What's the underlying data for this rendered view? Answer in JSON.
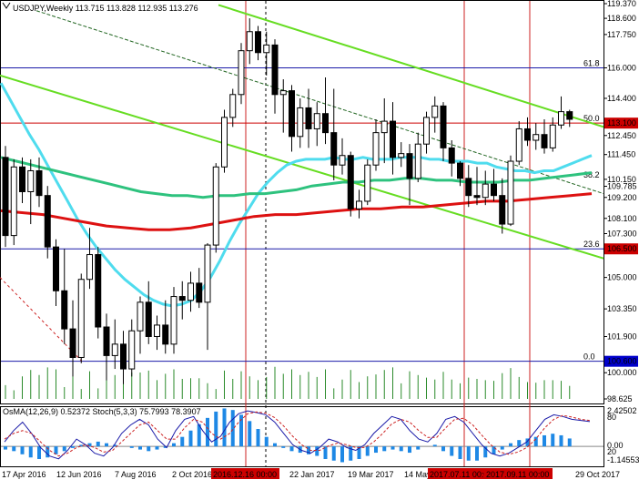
{
  "chart_data": {
    "type": "candlestick",
    "symbol_header": "USDJPY,Weekly  113.715 113.828 112.935 113.276",
    "price_axis": {
      "min": 98.625,
      "max": 119.37,
      "labels": [
        "119.370",
        "118.600",
        "117.750",
        "116.000",
        "114.400",
        "113.100",
        "112.450",
        "111.450",
        "110.150",
        "109.785",
        "109.200",
        "108.100",
        "107.300",
        "106.500",
        "105.000",
        "103.350",
        "101.900",
        "100.600",
        "100.000",
        "98.625"
      ],
      "highlighted": [
        {
          "label": "113.100",
          "color": "#cc0000"
        },
        {
          "label": "106.500",
          "color": "#cc0000"
        },
        {
          "label": "100.600",
          "color": "#0000cc"
        }
      ]
    },
    "x_axis_labels": [
      "17 Apr 2016",
      "12 Jun 2016",
      "7 Aug 2016",
      "2 Oct 2016",
      "2016.12.16 00:00",
      "22 Jan 2017",
      "19 Mar 2017",
      "14 May 2017",
      "2017.07.11 00:00",
      "2017.09.11 00:00",
      "29 Oct 2017"
    ],
    "fib_levels": [
      {
        "label": "61.8",
        "price": 116.0
      },
      {
        "label": "50.0",
        "price": 113.1
      },
      {
        "label": "38.2",
        "price": 110.15
      },
      {
        "label": "23.6",
        "price": 106.5
      },
      {
        "label": "0.0",
        "price": 100.6
      }
    ],
    "horizontal_lines": [
      {
        "price": 116.0,
        "color": "#1a1aa8"
      },
      {
        "price": 113.1,
        "color": "#cc0000"
      },
      {
        "price": 106.5,
        "color": "#1a1aa8"
      },
      {
        "price": 100.6,
        "color": "#1a1aa8"
      }
    ],
    "candles": [
      {
        "o": 111.3,
        "h": 111.9,
        "l": 106.6,
        "c": 107.2
      },
      {
        "o": 107.2,
        "h": 111.2,
        "l": 106.7,
        "c": 110.8
      },
      {
        "o": 110.8,
        "h": 111.3,
        "l": 108.9,
        "c": 109.5
      },
      {
        "o": 109.5,
        "h": 111.2,
        "l": 107.8,
        "c": 110.6
      },
      {
        "o": 110.6,
        "h": 111.3,
        "l": 108.7,
        "c": 109.3
      },
      {
        "o": 109.3,
        "h": 109.8,
        "l": 106.0,
        "c": 106.6
      },
      {
        "o": 106.6,
        "h": 107.0,
        "l": 103.5,
        "c": 104.3
      },
      {
        "o": 104.3,
        "h": 106.5,
        "l": 101.5,
        "c": 102.3
      },
      {
        "o": 102.3,
        "h": 103.8,
        "l": 99.8,
        "c": 100.8
      },
      {
        "o": 100.8,
        "h": 105.2,
        "l": 100.5,
        "c": 104.9
      },
      {
        "o": 104.9,
        "h": 107.6,
        "l": 104.4,
        "c": 106.2
      },
      {
        "o": 106.2,
        "h": 106.6,
        "l": 101.8,
        "c": 102.4
      },
      {
        "o": 102.4,
        "h": 103.1,
        "l": 99.6,
        "c": 100.9
      },
      {
        "o": 100.9,
        "h": 102.8,
        "l": 100.2,
        "c": 101.5
      },
      {
        "o": 101.5,
        "h": 102.2,
        "l": 99.4,
        "c": 100.2
      },
      {
        "o": 100.2,
        "h": 102.8,
        "l": 99.8,
        "c": 102.2
      },
      {
        "o": 102.2,
        "h": 104.0,
        "l": 101.0,
        "c": 103.7
      },
      {
        "o": 103.7,
        "h": 104.8,
        "l": 101.5,
        "c": 101.9
      },
      {
        "o": 101.9,
        "h": 103.0,
        "l": 101.2,
        "c": 102.5
      },
      {
        "o": 102.5,
        "h": 103.8,
        "l": 101.0,
        "c": 101.5
      },
      {
        "o": 101.5,
        "h": 104.5,
        "l": 101.0,
        "c": 104.0
      },
      {
        "o": 104.0,
        "h": 104.8,
        "l": 102.8,
        "c": 103.8
      },
      {
        "o": 103.8,
        "h": 105.3,
        "l": 103.2,
        "c": 104.7
      },
      {
        "o": 104.7,
        "h": 105.5,
        "l": 103.4,
        "c": 103.7
      },
      {
        "o": 103.7,
        "h": 106.8,
        "l": 101.2,
        "c": 106.7
      },
      {
        "o": 106.7,
        "h": 111.0,
        "l": 106.3,
        "c": 110.8
      },
      {
        "o": 110.8,
        "h": 113.8,
        "l": 110.5,
        "c": 113.4
      },
      {
        "o": 113.4,
        "h": 114.9,
        "l": 112.9,
        "c": 114.6
      },
      {
        "o": 114.6,
        "h": 117.3,
        "l": 114.1,
        "c": 116.9
      },
      {
        "o": 116.9,
        "h": 118.6,
        "l": 116.2,
        "c": 117.9
      },
      {
        "o": 117.9,
        "h": 118.2,
        "l": 116.4,
        "c": 116.8
      },
      {
        "o": 116.8,
        "h": 117.9,
        "l": 115.6,
        "c": 117.2
      },
      {
        "o": 117.2,
        "h": 117.5,
        "l": 113.6,
        "c": 114.6
      },
      {
        "o": 114.6,
        "h": 115.4,
        "l": 112.6,
        "c": 114.8
      },
      {
        "o": 114.8,
        "h": 115.1,
        "l": 111.6,
        "c": 112.4
      },
      {
        "o": 112.4,
        "h": 114.4,
        "l": 111.8,
        "c": 113.9
      },
      {
        "o": 113.9,
        "h": 114.9,
        "l": 111.8,
        "c": 112.8
      },
      {
        "o": 112.8,
        "h": 114.2,
        "l": 111.9,
        "c": 113.6
      },
      {
        "o": 113.6,
        "h": 115.5,
        "l": 112.0,
        "c": 112.6
      },
      {
        "o": 112.6,
        "h": 114.9,
        "l": 110.1,
        "c": 110.9
      },
      {
        "o": 110.9,
        "h": 112.3,
        "l": 110.4,
        "c": 111.4
      },
      {
        "o": 111.4,
        "h": 111.6,
        "l": 108.2,
        "c": 108.6
      },
      {
        "o": 108.6,
        "h": 109.6,
        "l": 108.1,
        "c": 109.0
      },
      {
        "o": 109.0,
        "h": 111.2,
        "l": 108.8,
        "c": 110.9
      },
      {
        "o": 110.9,
        "h": 113.3,
        "l": 110.6,
        "c": 112.6
      },
      {
        "o": 112.6,
        "h": 114.4,
        "l": 111.0,
        "c": 113.2
      },
      {
        "o": 113.2,
        "h": 114.2,
        "l": 110.4,
        "c": 111.3
      },
      {
        "o": 111.3,
        "h": 112.1,
        "l": 110.8,
        "c": 111.5
      },
      {
        "o": 111.5,
        "h": 112.0,
        "l": 108.8,
        "c": 110.2
      },
      {
        "o": 110.2,
        "h": 112.6,
        "l": 110.0,
        "c": 112.0
      },
      {
        "o": 112.0,
        "h": 113.7,
        "l": 111.5,
        "c": 113.4
      },
      {
        "o": 113.4,
        "h": 114.5,
        "l": 112.6,
        "c": 114.0
      },
      {
        "o": 114.0,
        "h": 114.2,
        "l": 111.1,
        "c": 111.8
      },
      {
        "o": 111.8,
        "h": 112.2,
        "l": 110.3,
        "c": 111.0
      },
      {
        "o": 111.0,
        "h": 111.1,
        "l": 109.8,
        "c": 110.2
      },
      {
        "o": 110.2,
        "h": 110.9,
        "l": 108.7,
        "c": 109.3
      },
      {
        "o": 109.3,
        "h": 110.8,
        "l": 108.8,
        "c": 109.2
      },
      {
        "o": 109.2,
        "h": 110.6,
        "l": 108.8,
        "c": 109.9
      },
      {
        "o": 109.9,
        "h": 110.7,
        "l": 109.0,
        "c": 109.3
      },
      {
        "o": 109.3,
        "h": 110.2,
        "l": 107.3,
        "c": 107.8
      },
      {
        "o": 107.8,
        "h": 111.4,
        "l": 107.7,
        "c": 111.1
      },
      {
        "o": 111.1,
        "h": 113.2,
        "l": 110.9,
        "c": 112.8
      },
      {
        "o": 112.8,
        "h": 113.4,
        "l": 111.9,
        "c": 112.2
      },
      {
        "o": 112.2,
        "h": 113.1,
        "l": 111.7,
        "c": 112.5
      },
      {
        "o": 112.5,
        "h": 113.3,
        "l": 111.5,
        "c": 111.8
      },
      {
        "o": 111.8,
        "h": 113.4,
        "l": 111.6,
        "c": 113.0
      },
      {
        "o": 113.0,
        "h": 114.5,
        "l": 112.8,
        "c": 113.7
      },
      {
        "o": 113.7,
        "h": 113.8,
        "l": 112.9,
        "c": 113.3
      }
    ],
    "indicators": [
      {
        "name": "ma_cyan",
        "color": "#4fdcee",
        "values": [
          115.2,
          114.3,
          113.4,
          112.5,
          111.7,
          110.8,
          109.9,
          109.0,
          108.1,
          107.3,
          106.6,
          106.0,
          105.4,
          104.9,
          104.5,
          104.1,
          103.8,
          103.6,
          103.5,
          103.6,
          103.8,
          104.3,
          105.0,
          105.9,
          106.9,
          107.8,
          108.6,
          109.4,
          110.0,
          110.5,
          110.9,
          111.1,
          111.2,
          111.2,
          111.2,
          111.3,
          111.2,
          111.2,
          111.3,
          111.2,
          111.2,
          111.2,
          111.3,
          111.3,
          111.3,
          111.2,
          111.2,
          111.1,
          111.1,
          111.1,
          111.0,
          111.0,
          110.8,
          110.7,
          110.6,
          110.6,
          110.5,
          110.6,
          110.6,
          110.8,
          111.0,
          111.2,
          111.4
        ]
      },
      {
        "name": "ma_green",
        "color": "#2ec27e",
        "values": [
          111.3,
          111.1,
          110.9,
          110.7,
          110.5,
          110.3,
          110.1,
          109.9,
          109.7,
          109.5,
          109.4,
          109.3,
          109.3,
          109.2,
          109.3,
          109.3,
          109.4,
          109.4,
          109.5,
          109.6,
          109.8,
          109.9,
          110.0,
          110.0,
          110.1,
          110.1,
          110.2,
          110.2,
          110.1,
          110.1,
          110.0,
          110.0,
          110.0,
          110.1,
          110.1,
          110.2,
          110.3,
          110.4,
          110.5
        ]
      },
      {
        "name": "ma_red",
        "color": "#dd1111",
        "values": [
          108.5,
          108.4,
          108.3,
          108.1,
          107.9,
          107.7,
          107.6,
          107.5,
          107.5,
          107.6,
          107.8,
          108.0,
          108.2,
          108.3,
          108.3,
          108.4,
          108.5,
          108.6,
          108.6,
          108.7,
          108.7,
          108.8,
          108.9,
          109.0,
          109.0,
          109.1,
          109.2,
          109.3,
          109.4
        ]
      }
    ],
    "oscillator": {
      "label": "OsMA(12,26,9) 0.52372  Stoch(5,3,3) 75.7993 78.3907",
      "right_labels": [
        "2.42502",
        "80",
        "0.00",
        "20",
        "-1.14553"
      ],
      "osma": [
        -0.2,
        -0.3,
        -0.5,
        -0.7,
        -0.8,
        -0.7,
        -0.5,
        -0.3,
        -0.1,
        0.1,
        0.2,
        0.3,
        0.2,
        0.1,
        0.0,
        -0.1,
        -0.2,
        -0.3,
        -0.2,
        -0.1,
        0.2,
        0.6,
        1.0,
        1.4,
        1.8,
        2.2,
        2.4,
        2.3,
        2.0,
        1.6,
        1.1,
        0.6,
        0.2,
        -0.1,
        -0.3,
        -0.4,
        -0.5,
        -0.6,
        -0.8,
        -0.9,
        -1.0,
        -0.9,
        -0.8,
        -0.6,
        -0.4,
        -0.3,
        -0.2,
        -0.3,
        -0.4,
        -0.2,
        0.0,
        0.1,
        -0.3,
        -0.6,
        -0.8,
        -0.9,
        -0.9,
        -0.7,
        -0.5,
        -0.2,
        0.2,
        0.4,
        0.5,
        0.6,
        0.7,
        0.8,
        0.7,
        0.5
      ],
      "stoch_main": [
        40,
        60,
        75,
        55,
        30,
        15,
        10,
        25,
        45,
        35,
        20,
        15,
        30,
        55,
        70,
        80,
        70,
        45,
        30,
        60,
        80,
        85,
        60,
        40,
        50,
        75,
        90,
        95,
        92,
        88,
        75,
        55,
        35,
        25,
        20,
        30,
        45,
        40,
        30,
        25,
        35,
        55,
        70,
        85,
        80,
        60,
        45,
        40,
        55,
        80,
        85,
        75,
        55,
        35,
        20,
        15,
        20,
        30,
        40,
        60,
        80,
        88,
        85,
        80,
        78,
        76
      ],
      "stoch_signal": [
        45,
        55,
        60,
        55,
        40,
        25,
        15,
        20,
        30,
        35,
        30,
        22,
        25,
        40,
        55,
        70,
        75,
        60,
        45,
        45,
        65,
        80,
        75,
        55,
        45,
        55,
        75,
        90,
        93,
        91,
        83,
        68,
        50,
        35,
        25,
        25,
        33,
        38,
        35,
        30,
        30,
        40,
        55,
        72,
        80,
        75,
        60,
        48,
        48,
        65,
        80,
        82,
        70,
        52,
        35,
        22,
        18,
        22,
        30,
        45,
        65,
        80,
        87,
        84,
        80,
        78
      ]
    }
  }
}
